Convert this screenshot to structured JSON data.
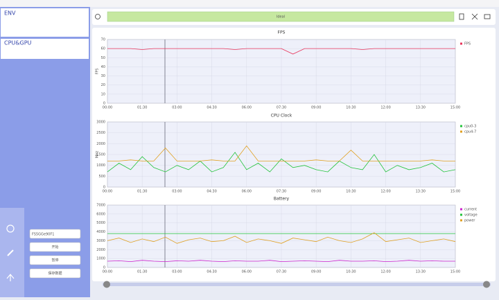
{
  "sidebar": {
    "env_title": "ENV",
    "cpu_gpu_title": "CPU&GPU",
    "device_select": "FS5GGe90F1",
    "buttons": [
      "开始",
      "暂停",
      "保存数据"
    ]
  },
  "toolbar": {
    "status": "Ideal"
  },
  "chart_data": [
    {
      "type": "line",
      "title": "FPS",
      "ylabel": "FPS",
      "x": [
        0,
        30,
        60,
        90,
        120,
        150,
        180,
        210,
        240,
        270,
        300,
        330,
        360,
        390,
        420,
        450,
        480,
        510,
        540,
        570,
        600,
        630,
        660,
        690,
        720,
        750,
        780,
        810,
        840,
        870,
        900
      ],
      "xlim": [
        0,
        900
      ],
      "xticks": [
        {
          "value": 0,
          "label": "00:00"
        },
        {
          "value": 90,
          "label": "01:30"
        },
        {
          "value": 180,
          "label": "03:00"
        },
        {
          "value": 270,
          "label": "04:30"
        },
        {
          "value": 360,
          "label": "06:00"
        },
        {
          "value": 450,
          "label": "07:30"
        },
        {
          "value": 540,
          "label": "09:00"
        },
        {
          "value": 630,
          "label": "10:30"
        },
        {
          "value": 720,
          "label": "12:00"
        },
        {
          "value": 810,
          "label": "13:30"
        },
        {
          "value": 900,
          "label": "15:00"
        }
      ],
      "ylim": [
        0,
        70
      ],
      "yticks": [
        0,
        10,
        20,
        30,
        40,
        50,
        60,
        70
      ],
      "grid": true,
      "series": [
        {
          "name": "FPS",
          "color": "#e8335a",
          "values": [
            60,
            60,
            60,
            59,
            60,
            60,
            60,
            60,
            60,
            60,
            60,
            59,
            60,
            60,
            60,
            60,
            54,
            60,
            60,
            60,
            60,
            60,
            59,
            60,
            60,
            60,
            60,
            60,
            60,
            60,
            60
          ]
        }
      ]
    },
    {
      "type": "line",
      "title": "CPU Clock",
      "ylabel": "MHz",
      "x": [
        0,
        30,
        60,
        90,
        120,
        150,
        180,
        210,
        240,
        270,
        300,
        330,
        360,
        390,
        420,
        450,
        480,
        510,
        540,
        570,
        600,
        630,
        660,
        690,
        720,
        750,
        780,
        810,
        840,
        870,
        900
      ],
      "xlim": [
        0,
        900
      ],
      "xticks": [
        {
          "value": 0,
          "label": "00:00"
        },
        {
          "value": 90,
          "label": "01:30"
        },
        {
          "value": 180,
          "label": "03:00"
        },
        {
          "value": 270,
          "label": "04:30"
        },
        {
          "value": 360,
          "label": "06:00"
        },
        {
          "value": 450,
          "label": "07:30"
        },
        {
          "value": 540,
          "label": "09:00"
        },
        {
          "value": 630,
          "label": "10:30"
        },
        {
          "value": 720,
          "label": "12:00"
        },
        {
          "value": 810,
          "label": "13:30"
        },
        {
          "value": 900,
          "label": "15:00"
        }
      ],
      "ylim": [
        0,
        3000
      ],
      "yticks": [
        0,
        500,
        1000,
        1500,
        2000,
        2500,
        3000
      ],
      "grid": true,
      "series": [
        {
          "name": "cpu0-3",
          "color": "#22c33a",
          "values": [
            700,
            1100,
            800,
            1400,
            900,
            700,
            1000,
            800,
            1200,
            700,
            900,
            1600,
            800,
            1100,
            700,
            1300,
            900,
            1000,
            800,
            700,
            1200,
            900,
            800,
            1500,
            700,
            1000,
            800,
            900,
            1100,
            700,
            800
          ]
        },
        {
          "name": "cpu4-7",
          "color": "#e0a020",
          "values": [
            1200,
            1200,
            1250,
            1200,
            1200,
            1800,
            1200,
            1200,
            1200,
            1250,
            1200,
            1200,
            1900,
            1200,
            1200,
            1200,
            1200,
            1200,
            1250,
            1200,
            1200,
            1700,
            1200,
            1200,
            1200,
            1200,
            1200,
            1200,
            1250,
            1200,
            1200
          ]
        }
      ]
    },
    {
      "type": "line",
      "title": "Battery",
      "x": [
        0,
        30,
        60,
        90,
        120,
        150,
        180,
        210,
        240,
        270,
        300,
        330,
        360,
        390,
        420,
        450,
        480,
        510,
        540,
        570,
        600,
        630,
        660,
        690,
        720,
        750,
        780,
        810,
        840,
        870,
        900
      ],
      "xlim": [
        0,
        900
      ],
      "xticks": [
        {
          "value": 0,
          "label": "00:00"
        },
        {
          "value": 90,
          "label": "01:30"
        },
        {
          "value": 180,
          "label": "03:00"
        },
        {
          "value": 270,
          "label": "04:30"
        },
        {
          "value": 360,
          "label": "06:00"
        },
        {
          "value": 450,
          "label": "07:30"
        },
        {
          "value": 540,
          "label": "09:00"
        },
        {
          "value": 630,
          "label": "10:30"
        },
        {
          "value": 720,
          "label": "12:00"
        },
        {
          "value": 810,
          "label": "13:30"
        },
        {
          "value": 900,
          "label": "15:00"
        }
      ],
      "ylim": [
        0,
        7000
      ],
      "yticks": [
        0,
        1000,
        2000,
        3000,
        4000,
        5000,
        6000,
        7000
      ],
      "grid": true,
      "series": [
        {
          "name": "current",
          "color": "#cc22cc",
          "values": [
            700,
            750,
            650,
            800,
            700,
            650,
            750,
            700,
            800,
            700,
            650,
            750,
            700,
            700,
            800,
            650,
            700,
            750,
            700,
            650,
            800,
            700,
            700,
            750,
            650,
            700,
            800,
            700,
            750,
            700,
            700
          ]
        },
        {
          "name": "voltage",
          "color": "#22c33a",
          "values": [
            3800,
            3800,
            3800,
            3800,
            3800,
            3800,
            3800,
            3800,
            3800,
            3800,
            3800,
            3800,
            3800,
            3800,
            3800,
            3800,
            3800,
            3800,
            3800,
            3800,
            3800,
            3800,
            3800,
            3800,
            3800,
            3800,
            3800,
            3800,
            3800,
            3800,
            3800
          ]
        },
        {
          "name": "power",
          "color": "#e0a020",
          "values": [
            3000,
            3300,
            2800,
            3200,
            2900,
            3400,
            2700,
            3100,
            3300,
            2900,
            3000,
            3500,
            2800,
            3200,
            3000,
            2700,
            3300,
            3100,
            2900,
            3400,
            3000,
            2800,
            3200,
            3900,
            2900,
            3100,
            3300,
            2800,
            3000,
            3200,
            2900
          ]
        }
      ]
    }
  ]
}
